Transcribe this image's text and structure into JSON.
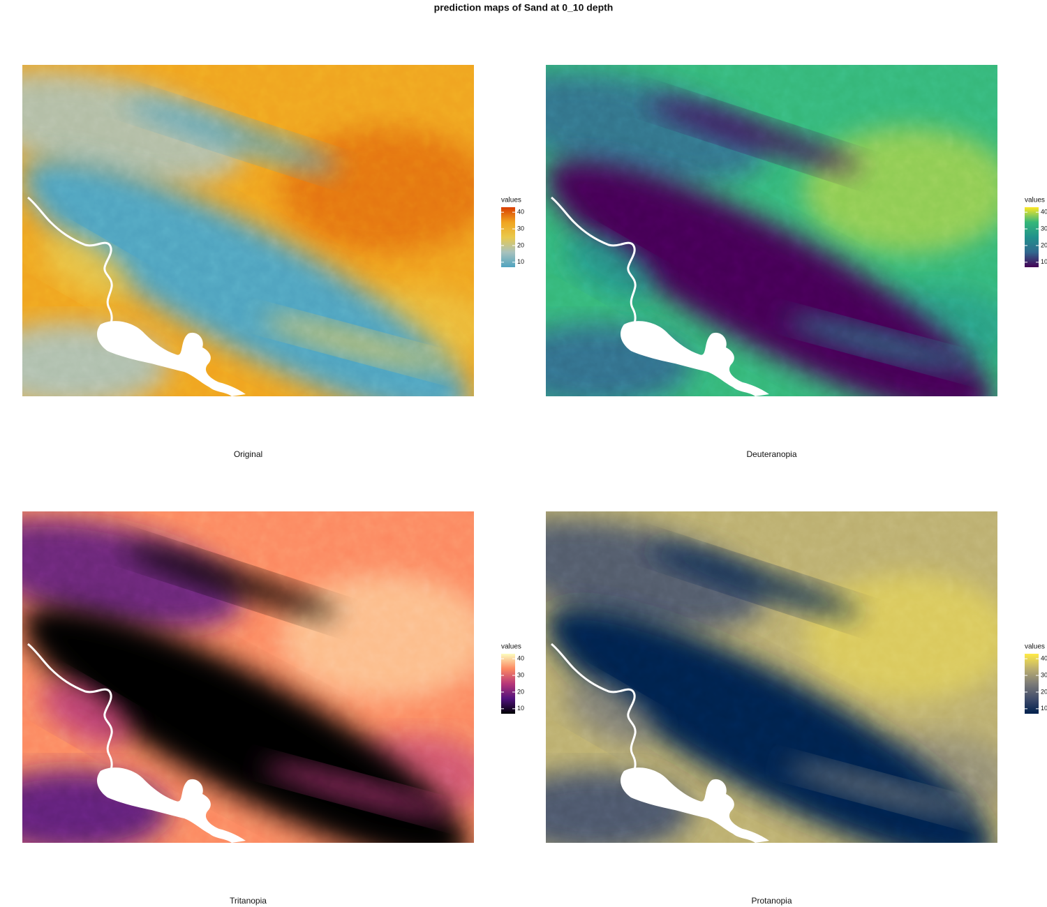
{
  "title": "prediction maps of Sand at 0_10 depth",
  "maps": [
    {
      "caption": "Original",
      "legend": {
        "title": "values",
        "limits": [
          7,
          43
        ],
        "ticks": [
          10,
          20,
          30,
          40
        ],
        "colors": [
          "#4fa3bf",
          "#a8c2bd",
          "#e9c94c",
          "#f0a420",
          "#d93e00"
        ]
      }
    },
    {
      "caption": "Deuteranopia",
      "legend": {
        "title": "values",
        "limits": [
          7,
          43
        ],
        "ticks": [
          10,
          20,
          30,
          40
        ],
        "colors": [
          "#440154",
          "#31688e",
          "#21918c",
          "#35b779",
          "#fde725"
        ]
      }
    },
    {
      "caption": "Tritanopia",
      "legend": {
        "title": "values",
        "limits": [
          7,
          43
        ],
        "ticks": [
          10,
          20,
          30,
          40
        ],
        "colors": [
          "#000004",
          "#51127c",
          "#b73779",
          "#fc8961",
          "#fcfdbf"
        ]
      }
    },
    {
      "caption": "Protanopia",
      "legend": {
        "title": "values",
        "limits": [
          7,
          43
        ],
        "ticks": [
          10,
          20,
          30,
          40
        ],
        "colors": [
          "#00204d",
          "#414d6b",
          "#7c7b78",
          "#bcaf6f",
          "#ffea46"
        ]
      }
    }
  ]
}
